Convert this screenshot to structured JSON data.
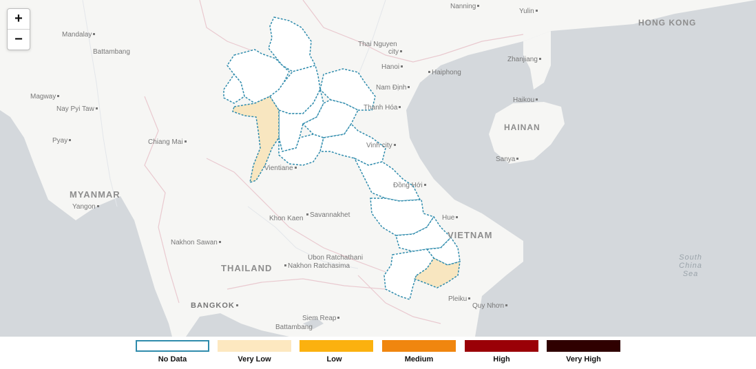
{
  "controls": {
    "zoom_in": "+",
    "zoom_out": "−"
  },
  "cities": {
    "nanning": "Nanning",
    "yulin": "Yulin",
    "mandalay": "Mandalay",
    "battambang_mm": "Battambang",
    "thai_nguyen": "Thai Nguyen",
    "thai_nguyen_city": "city",
    "hanoi": "Hanoi",
    "haiphong": "Haiphong",
    "zhanjiang": "Zhanjiang",
    "nam_dinh": "Nam Định",
    "magway": "Magway",
    "nay_pyi_taw": "Nay Pyi Taw",
    "haikou": "Haikou",
    "thanh_hoa": "Thanh Hóa",
    "pyay": "Pyay",
    "chiang_mai": "Chiang Mai",
    "vinh": "Vinh city",
    "sanya": "Sanya",
    "vientiane": "Vientiane",
    "yangon": "Yangon",
    "dong_hoi": "Đồng Hới",
    "khon_kaen": "Khon Kaen",
    "savannakhet": "Savannakhet",
    "hue": "Hue",
    "nakhon_sawan": "Nakhon Sawan",
    "ubon": "Ubon Ratchathani",
    "nakhon_ratchasima": "Nakhon Ratchasima",
    "pleiku": "Pleiku",
    "quy_nhon": "Quy Nhơn",
    "bangkok": "BANGKOK",
    "siem_reap": "Siem Reap",
    "battambang": "Battambang"
  },
  "countries": {
    "hong_kong": "HONG KONG",
    "hainan": "HAINAN",
    "myanmar": "MYANMAR",
    "thailand": "THAILAND",
    "vietnam": "VIETNAM"
  },
  "seas": {
    "south_china_sea": "South China Sea"
  },
  "legend": {
    "items": [
      {
        "label": "No Data",
        "color": "#ffffff",
        "border": "#2e8bac"
      },
      {
        "label": "Very Low",
        "color": "#fde8c0",
        "border": "#fde8c0"
      },
      {
        "label": "Low",
        "color": "#fbb10f",
        "border": "#fbb10f"
      },
      {
        "label": "Medium",
        "color": "#f0860f",
        "border": "#f0860f"
      },
      {
        "label": "High",
        "color": "#9a0007",
        "border": "#9a0007"
      },
      {
        "label": "Very High",
        "color": "#2f0000",
        "border": "#2f0000"
      }
    ]
  },
  "colors": {
    "sea": "#d4d8dc",
    "land": "#f6f6f4",
    "region_border": "#2e8bac",
    "very_low_fill": "#f8e6c0"
  }
}
